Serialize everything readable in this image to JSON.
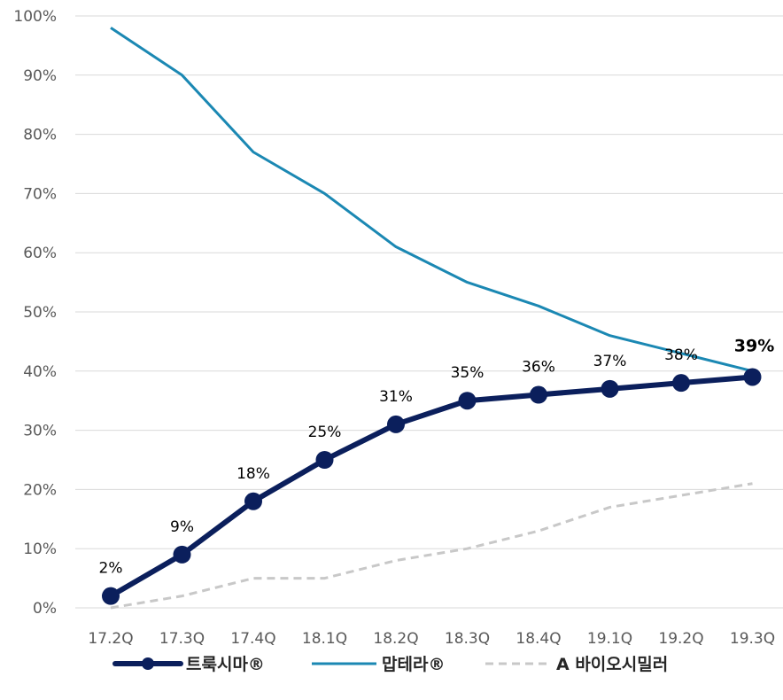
{
  "chart_data": {
    "type": "line",
    "categories": [
      "17.2Q",
      "17.3Q",
      "17.4Q",
      "18.1Q",
      "18.2Q",
      "18.3Q",
      "18.4Q",
      "19.1Q",
      "19.2Q",
      "19.3Q"
    ],
    "y_ticks": [
      "0%",
      "10%",
      "20%",
      "30%",
      "40%",
      "50%",
      "60%",
      "70%",
      "80%",
      "90%",
      "100%"
    ],
    "ylim": [
      0,
      100
    ],
    "grid": true,
    "legend_position": "bottom",
    "series": [
      {
        "name": "트룩시마®",
        "values": [
          2,
          9,
          18,
          25,
          31,
          35,
          36,
          37,
          38,
          39
        ],
        "data_labels": [
          "2%",
          "9%",
          "18%",
          "25%",
          "31%",
          "35%",
          "36%",
          "37%",
          "38%",
          "39%"
        ],
        "color": "#0b1f5c",
        "style": "solid-markers"
      },
      {
        "name": "맙테라®",
        "values": [
          98,
          90,
          77,
          70,
          61,
          55,
          51,
          46,
          43,
          40
        ],
        "color": "#1b88b3",
        "style": "solid"
      },
      {
        "name": "A 바이오시밀러",
        "values": [
          0,
          2,
          5,
          5,
          8,
          10,
          13,
          17,
          19,
          21
        ],
        "color": "#c8c8c8",
        "style": "dashed"
      }
    ]
  }
}
